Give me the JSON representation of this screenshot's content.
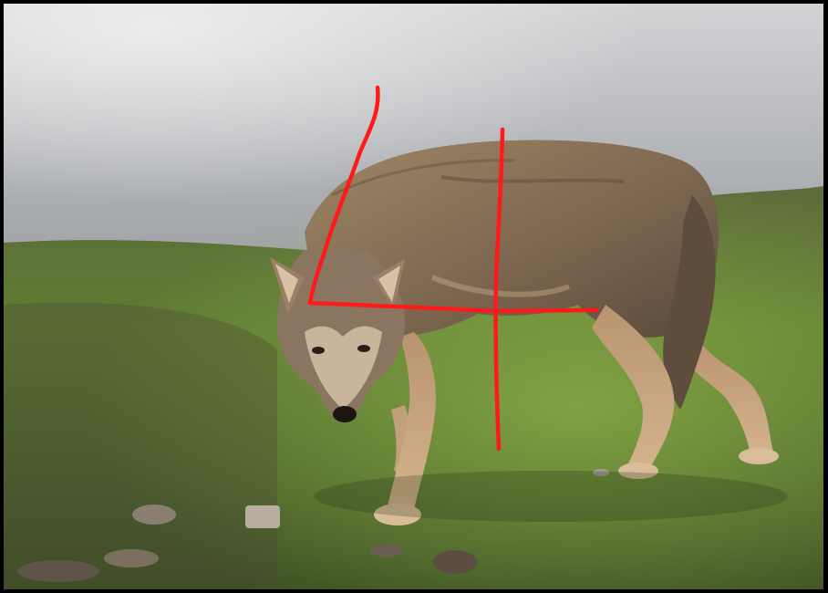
{
  "image": {
    "subject": "wolf",
    "scene": "grassy-hillside-with-fog",
    "annotation_color": "#ff1a1a",
    "colors": {
      "frame": "#000000",
      "sky_top": "#c9cacc",
      "sky_bottom": "#8a8d92",
      "grass": "#6f8a3f",
      "fur": "#8c7458"
    }
  }
}
